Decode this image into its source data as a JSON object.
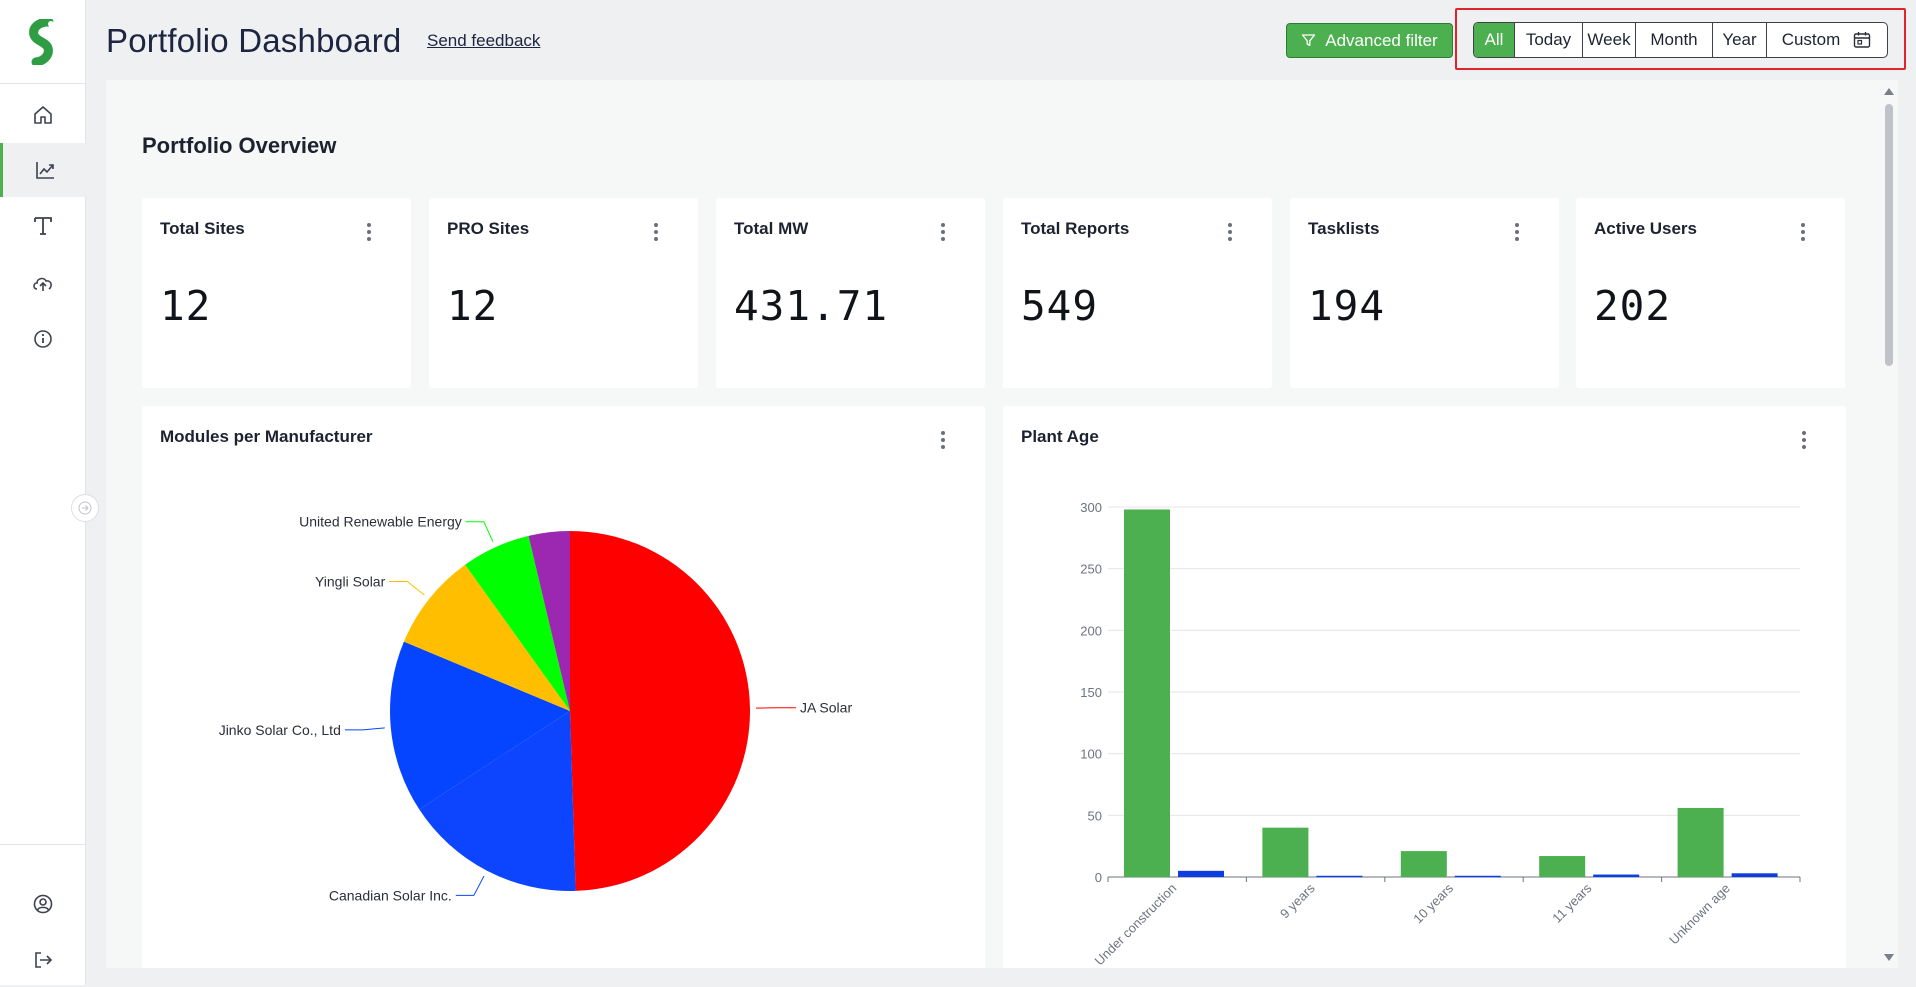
{
  "app": {
    "logo_icon": "brand-s-logo",
    "accent_color": "#4caf50",
    "sidebar_items": [
      {
        "id": "home",
        "icon": "home-icon",
        "active": false
      },
      {
        "id": "analytics",
        "icon": "analytics-chart-icon",
        "active": true
      },
      {
        "id": "text",
        "icon": "text-tool-icon",
        "active": false
      },
      {
        "id": "upload",
        "icon": "cloud-upload-icon",
        "active": false
      },
      {
        "id": "info",
        "icon": "info-icon",
        "active": false
      }
    ],
    "sidebar_bottom": [
      {
        "id": "profile",
        "icon": "user-circle-icon"
      },
      {
        "id": "logout",
        "icon": "logout-icon"
      }
    ]
  },
  "header": {
    "title": "Portfolio Dashboard",
    "feedback_link": "Send feedback",
    "advanced_filter_label": "Advanced filter",
    "range_options": [
      "All",
      "Today",
      "Week",
      "Month",
      "Year",
      "Custom"
    ],
    "selected_range": "All"
  },
  "overview": {
    "title": "Portfolio Overview",
    "kpis": [
      {
        "label": "Total Sites",
        "value": "12"
      },
      {
        "label": "PRO Sites",
        "value": "12"
      },
      {
        "label": "Total MW",
        "value": "431.71"
      },
      {
        "label": "Total Reports",
        "value": "549"
      },
      {
        "label": "Tasklists",
        "value": "194"
      },
      {
        "label": "Active Users",
        "value": "202"
      }
    ]
  },
  "chart_data": [
    {
      "type": "pie",
      "title": "Modules per Manufacturer",
      "slices": [
        {
          "label": "JA Solar",
          "value": 49.5,
          "color": "#ff0000"
        },
        {
          "label": "Canadian Solar Inc.",
          "value": 16.3,
          "color": "#0d45ff"
        },
        {
          "label": "Jinko Solar Co., Ltd",
          "value": 15.5,
          "color": "#0545ff"
        },
        {
          "label": "Yingli Solar",
          "value": 8.8,
          "color": "#ffbf00"
        },
        {
          "label": "United Renewable Energy",
          "value": 6.2,
          "color": "#00ff00"
        },
        {
          "label": "",
          "value": 3.7,
          "color": "#9c27b0"
        }
      ]
    },
    {
      "type": "bar",
      "title": "Plant Age",
      "categories": [
        "Under construction",
        "9 years",
        "10 years",
        "11 years",
        "Unknown age"
      ],
      "series": [
        {
          "values": [
            298,
            40,
            21,
            17,
            56
          ],
          "color": "#4caf50"
        },
        {
          "values": [
            5,
            1,
            1,
            2,
            3
          ],
          "color": "#0d3fe0"
        }
      ],
      "ylim": [
        0,
        300
      ],
      "yticks": [
        "0",
        "50",
        "100",
        "150",
        "200",
        "250",
        "300"
      ],
      "grid": true
    }
  ]
}
